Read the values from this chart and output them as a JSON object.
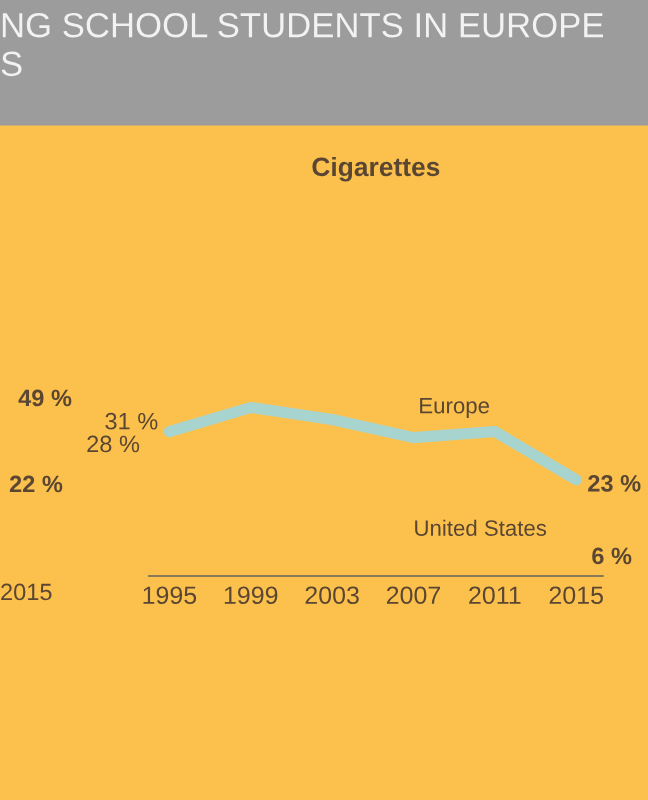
{
  "chart_data": [
    {
      "type": "other",
      "title": "NG SCHOOL STUDENTS IN EUROPE\nS",
      "annotations": [
        "49 %",
        "22 %",
        "2015"
      ]
    },
    {
      "type": "line",
      "title": "Cigarettes",
      "x": [
        1995,
        1999,
        2003,
        2007,
        2011,
        2015
      ],
      "xlim": [
        1994,
        2016.3
      ],
      "xticks": [
        1995,
        1999,
        2003,
        2007,
        2011,
        2015
      ],
      "tick_labels": "x",
      "grid": false,
      "series": [
        {
          "name": "Europe",
          "color": "#a8d4d0",
          "values": [
            31,
            35,
            33,
            30,
            31,
            23
          ],
          "value_labels": [
            "31 %",
            null,
            null,
            null,
            null,
            "23 %"
          ]
        }
      ],
      "annotations": [
        "28 %",
        "6 %",
        "United States"
      ]
    }
  ]
}
